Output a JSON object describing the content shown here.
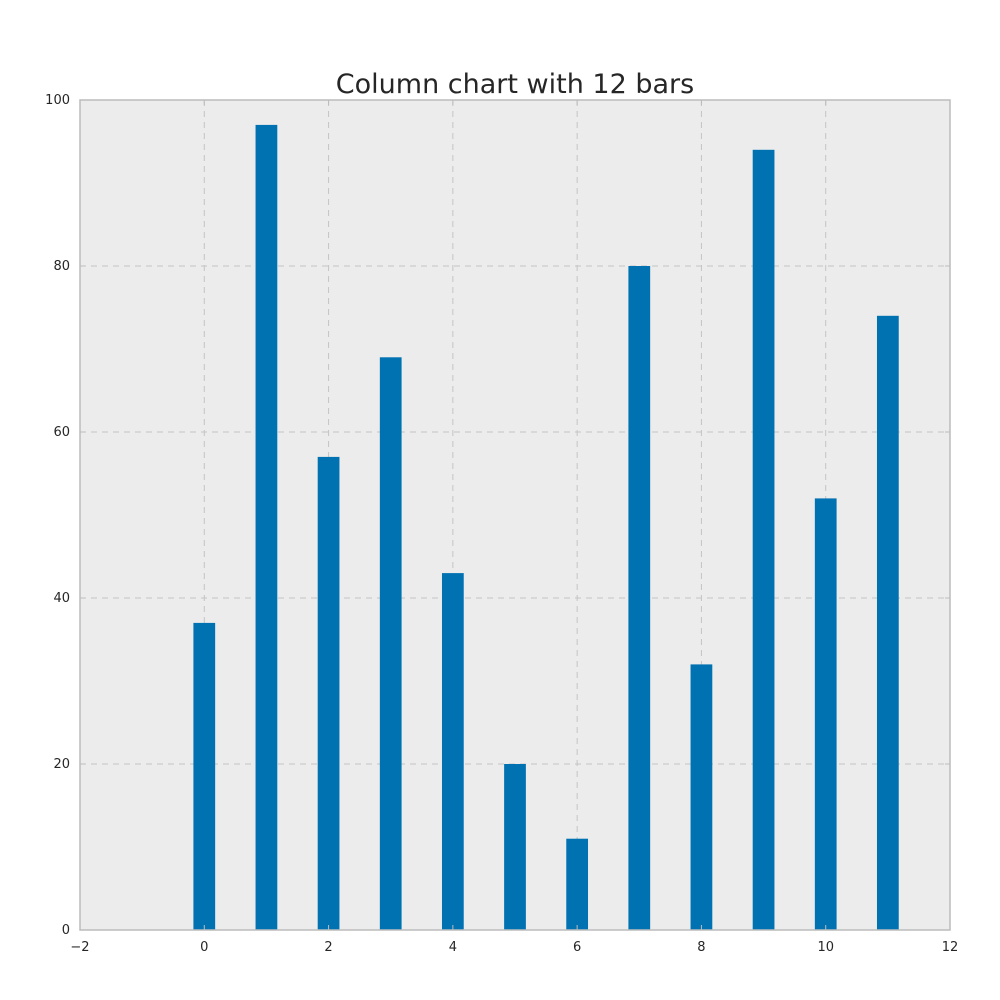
{
  "chart_data": {
    "type": "bar",
    "title": "Column chart with 12 bars",
    "xlabel": "",
    "ylabel": "",
    "categories": [
      0,
      1,
      2,
      3,
      4,
      5,
      6,
      7,
      8,
      9,
      10,
      11
    ],
    "values": [
      37,
      97,
      57,
      69,
      43,
      20,
      11,
      80,
      32,
      94,
      52,
      74
    ],
    "xlim": [
      -2,
      12
    ],
    "ylim": [
      0,
      100
    ],
    "xticks": [
      -2,
      0,
      2,
      4,
      6,
      8,
      10,
      12
    ],
    "yticks": [
      0,
      20,
      40,
      60,
      80,
      100
    ],
    "xtick_labels": [
      "−2",
      "0",
      "2",
      "4",
      "6",
      "8",
      "10",
      "12"
    ],
    "ytick_labels": [
      "0",
      "20",
      "40",
      "60",
      "80",
      "100"
    ],
    "bar_width": 0.35,
    "bar_color": "#0072b2",
    "plot_background": "#ececec",
    "grid": true,
    "grid_style": "dashed",
    "legend": "none"
  }
}
